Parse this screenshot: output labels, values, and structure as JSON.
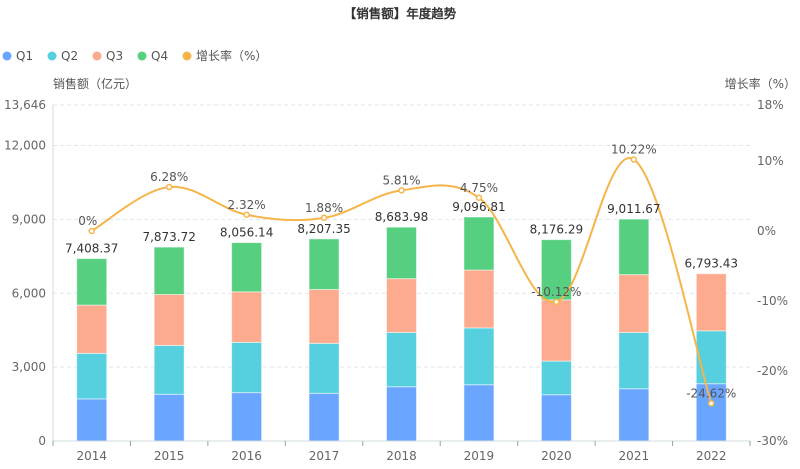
{
  "chart_data": {
    "type": "bar",
    "title": "【销售额】年度趋势",
    "categories": [
      "2014",
      "2015",
      "2016",
      "2017",
      "2018",
      "2019",
      "2020",
      "2021",
      "2022"
    ],
    "series": [
      {
        "name": "Q1",
        "type": "bar",
        "stack": "sales",
        "color": "#6aa6ff",
        "values": [
          1711,
          1897,
          1966,
          1938,
          2205,
          2286,
          1881,
          2124,
          2327
        ]
      },
      {
        "name": "Q2",
        "type": "bar",
        "stack": "sales",
        "color": "#56d0de",
        "values": [
          1848,
          1986,
          2039,
          2027,
          2202,
          2307,
          1365,
          2283,
          2148
        ]
      },
      {
        "name": "Q3",
        "type": "bar",
        "stack": "sales",
        "color": "#fdab8e",
        "values": [
          1962,
          2067,
          2055,
          2189,
          2188,
          2351,
          2488,
          2350,
          2318.43
        ]
      },
      {
        "name": "Q4",
        "type": "bar",
        "stack": "sales",
        "color": "#57cf80",
        "values": [
          1887.37,
          1923.72,
          1996.14,
          2053.35,
          2088.98,
          2152.81,
          2442.29,
          2254.67,
          null
        ]
      },
      {
        "name": "增长率（%）",
        "type": "line",
        "axis": "right",
        "color": "#f5b54a",
        "values": [
          0,
          6.28,
          2.32,
          1.88,
          5.81,
          4.75,
          -10.12,
          10.22,
          -24.62
        ]
      }
    ],
    "totals": [
      7408.37,
      7873.72,
      8056.14,
      8207.35,
      8683.98,
      9096.81,
      8176.29,
      9011.67,
      6793.43
    ],
    "total_labels": [
      "7,408.37",
      "7,873.72",
      "8,056.14",
      "8,207.35",
      "8,683.98",
      "9,096.81",
      "8,176.29",
      "9,011.67",
      "6,793.43"
    ],
    "rate_labels": [
      "0%",
      "6.28%",
      "2.32%",
      "1.88%",
      "5.81%",
      "4.75%",
      "-10.12%",
      "10.22%",
      "-24.62%"
    ],
    "legend": [
      "Q1",
      "Q2",
      "Q3",
      "Q4",
      "增长率（%）"
    ],
    "legend_placement": "top-left",
    "ylabel": "销售额（亿元）",
    "ylabel_right": "增长率（%）",
    "ylim": [
      0,
      13646
    ],
    "yticks": [
      0,
      3000,
      6000,
      9000,
      12000,
      13646
    ],
    "ytick_labels": [
      "0",
      "3,000",
      "6,000",
      "9,000",
      "12,000",
      "13,646"
    ],
    "ylim_right": [
      -30,
      18
    ],
    "yticks_right": [
      18,
      10,
      0,
      -10,
      -20,
      -30
    ],
    "ytick_labels_right": [
      "18%",
      "10%",
      "0%",
      "-10%",
      "-20%",
      "-30%"
    ],
    "grid": true
  }
}
